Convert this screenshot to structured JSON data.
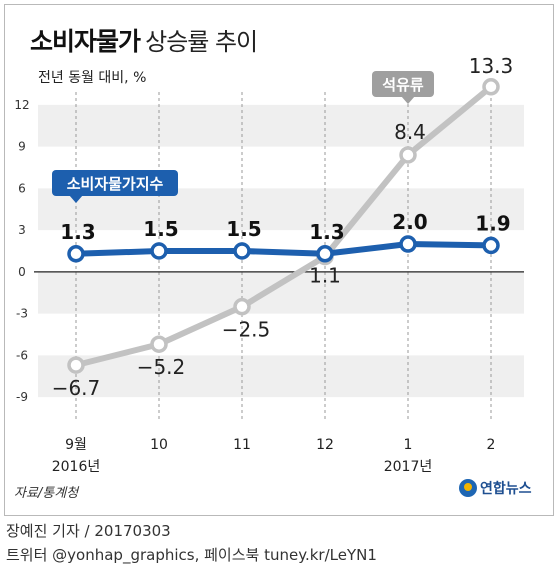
{
  "title": {
    "main": "소비자물가",
    "sub": "상승률 추이"
  },
  "unit": "전년 동월 대비, %",
  "source": "자료/통계청",
  "logo": "연합뉴스",
  "credit": {
    "line1": "장예진 기자 / 20170303",
    "line2": "트위터 @yonhap_graphics, 페이스북 tuney.kr/LeYN1"
  },
  "chart_data": {
    "type": "line",
    "title": "소비자물가 상승률 추이",
    "ylabel": "전년 동월 대비, %",
    "categories": [
      "9월",
      "10",
      "11",
      "12",
      "1",
      "2"
    ],
    "category_sublabels": [
      "2016년",
      "",
      "",
      "",
      "2017년",
      ""
    ],
    "yticks": [
      12,
      9,
      6,
      3,
      0,
      -3,
      -6,
      -9
    ],
    "ylim": [
      -10.5,
      13.5
    ],
    "grid": "alternating horizontal bands",
    "series": [
      {
        "name": "소비자물가지수",
        "values": [
          1.3,
          1.5,
          1.5,
          1.3,
          2.0,
          1.9
        ],
        "labels": [
          "1.3",
          "1.5",
          "1.5",
          "1.3",
          "2.0",
          "1.9"
        ],
        "color": "#1d5fae"
      },
      {
        "name": "석유류",
        "values": [
          -6.7,
          -5.2,
          -2.5,
          1.1,
          8.4,
          13.3
        ],
        "labels": [
          "−6.7",
          "−5.2",
          "−2.5",
          "1.1",
          "8.4",
          "13.3"
        ],
        "color": "#c2c2c2"
      }
    ]
  }
}
